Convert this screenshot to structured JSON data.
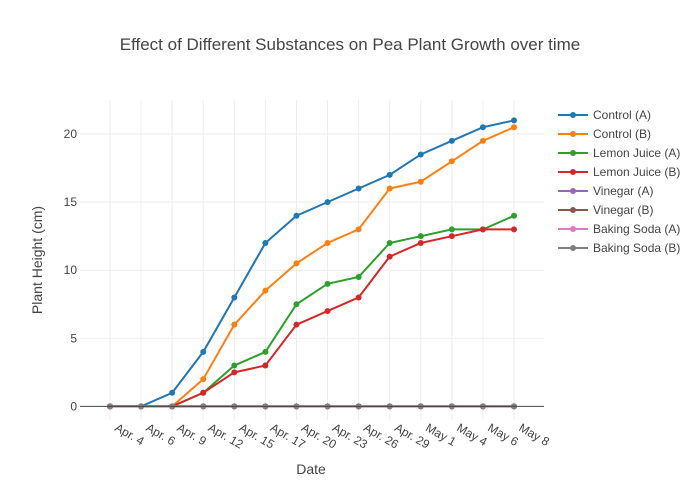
{
  "chart_data": {
    "type": "line",
    "title": "Effect of Different Substances on Pea Plant Growth over time",
    "xlabel": "Date",
    "ylabel": "Plant Height (cm)",
    "categories": [
      "Apr. 4",
      "Apr. 6",
      "Apr. 9",
      "Apr. 12",
      "Apr. 15",
      "Apr. 17",
      "Apr. 20",
      "Apr. 23",
      "Apr. 26",
      "Apr. 29",
      "May 1",
      "May 4",
      "May 6",
      "May 8"
    ],
    "ylim": [
      -1,
      22.5
    ],
    "yticks": [
      0,
      5,
      10,
      15,
      20
    ],
    "grid": true,
    "legend_position": "right",
    "series": [
      {
        "name": "Control (A)",
        "color": "#1f77b4",
        "values": [
          0,
          0,
          1,
          4,
          8,
          12,
          14,
          15,
          16,
          17,
          18.5,
          19.5,
          20.5,
          21
        ]
      },
      {
        "name": "Control (B)",
        "color": "#ff7f0e",
        "values": [
          0,
          0,
          0,
          2,
          6,
          8.5,
          10.5,
          12,
          13,
          16,
          16.5,
          18,
          19.5,
          20.5
        ]
      },
      {
        "name": "Lemon Juice (A)",
        "color": "#2ca02c",
        "values": [
          0,
          0,
          0,
          1,
          3,
          4,
          7.5,
          9,
          9.5,
          12,
          12.5,
          13,
          13,
          14
        ]
      },
      {
        "name": "Lemon Juice (B)",
        "color": "#d62728",
        "values": [
          0,
          0,
          0,
          1,
          2.5,
          3,
          6,
          7,
          8,
          11,
          12,
          12.5,
          13,
          13
        ]
      },
      {
        "name": "Vinegar (A)",
        "color": "#9467bd",
        "values": [
          0,
          0,
          0,
          0,
          0,
          0,
          0,
          0,
          0,
          0,
          0,
          0,
          0,
          0
        ]
      },
      {
        "name": "Vinegar (B)",
        "color": "#8c564b",
        "values": [
          0,
          0,
          0,
          0,
          0,
          0,
          0,
          0,
          0,
          0,
          0,
          0,
          0,
          0
        ]
      },
      {
        "name": "Baking  Soda (A)",
        "color": "#e377c2",
        "values": [
          0,
          0,
          0,
          0,
          0,
          0,
          0,
          0,
          0,
          0,
          0,
          0,
          0,
          0
        ]
      },
      {
        "name": "Baking Soda (B)",
        "color": "#7f7f7f",
        "values": [
          0,
          0,
          0,
          0,
          0,
          0,
          0,
          0,
          0,
          0,
          0,
          0,
          0,
          0
        ]
      }
    ]
  }
}
